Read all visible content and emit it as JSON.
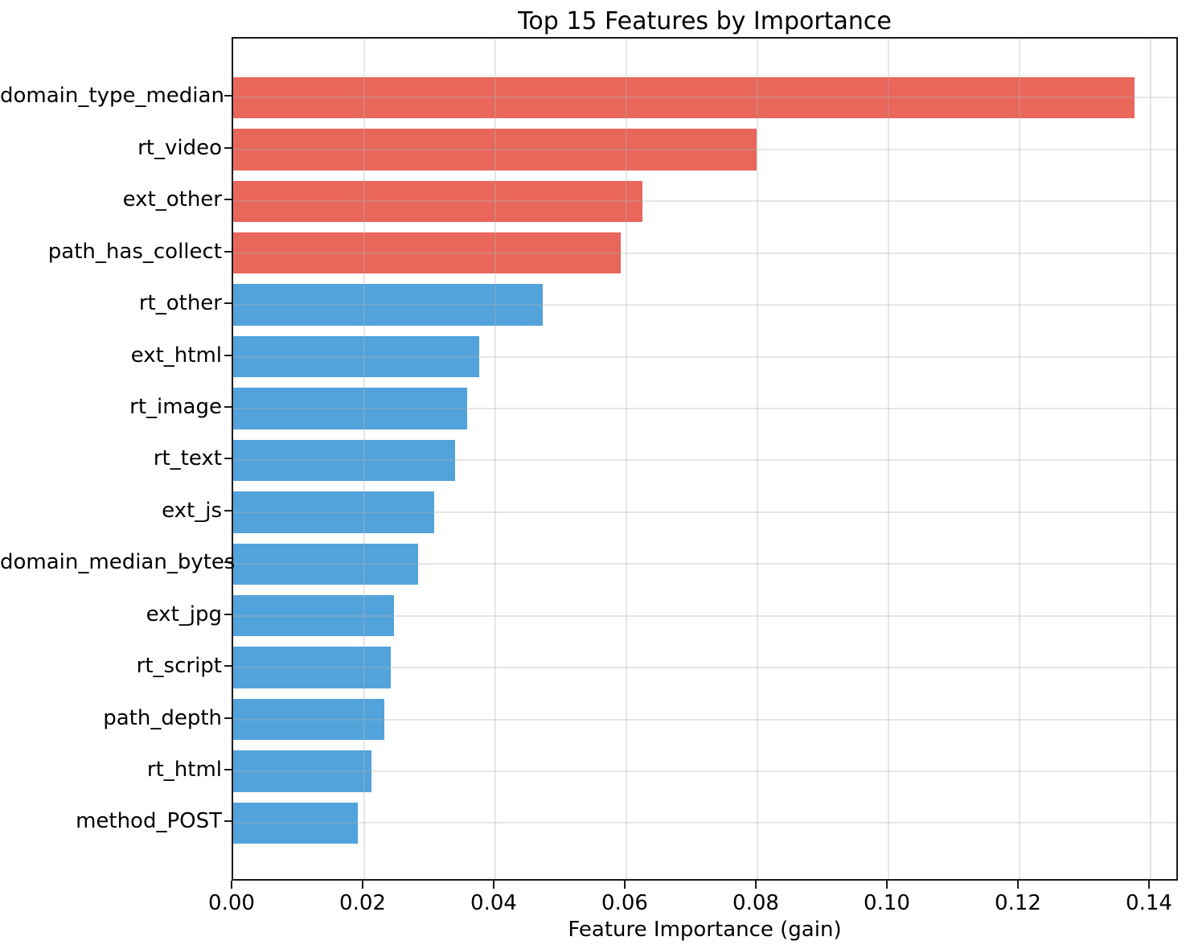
{
  "chart_data": {
    "type": "bar",
    "orientation": "horizontal",
    "title": "Top 15 Features by Importance",
    "xlabel": "Feature Importance (gain)",
    "ylabel": "",
    "categories": [
      "domain_type_median",
      "rt_video",
      "ext_other",
      "path_has_collect",
      "rt_other",
      "ext_html",
      "rt_image",
      "rt_text",
      "ext_js",
      "domain_median_bytes",
      "ext_jpg",
      "rt_script",
      "path_depth",
      "rt_html",
      "method_POST"
    ],
    "values": [
      0.1376,
      0.0799,
      0.0625,
      0.0591,
      0.0472,
      0.0375,
      0.0357,
      0.0339,
      0.0307,
      0.0282,
      0.0245,
      0.024,
      0.0231,
      0.0211,
      0.019
    ],
    "colors": [
      "#e8665a",
      "#e8665a",
      "#e8665a",
      "#e8665a",
      "#52a3dc",
      "#52a3dc",
      "#52a3dc",
      "#52a3dc",
      "#52a3dc",
      "#52a3dc",
      "#52a3dc",
      "#52a3dc",
      "#52a3dc",
      "#52a3dc",
      "#52a3dc"
    ],
    "highlight_color": "#e8665a",
    "base_color": "#52a3dc",
    "x_ticks": [
      0.0,
      0.02,
      0.04,
      0.06,
      0.08,
      0.1,
      0.12,
      0.14
    ],
    "x_tick_labels": [
      "0.00",
      "0.02",
      "0.04",
      "0.06",
      "0.08",
      "0.10",
      "0.12",
      "0.14"
    ],
    "xlim": [
      0,
      0.14442
    ],
    "grid": true,
    "grid_color": "#b0b0b0",
    "legend": null
  }
}
